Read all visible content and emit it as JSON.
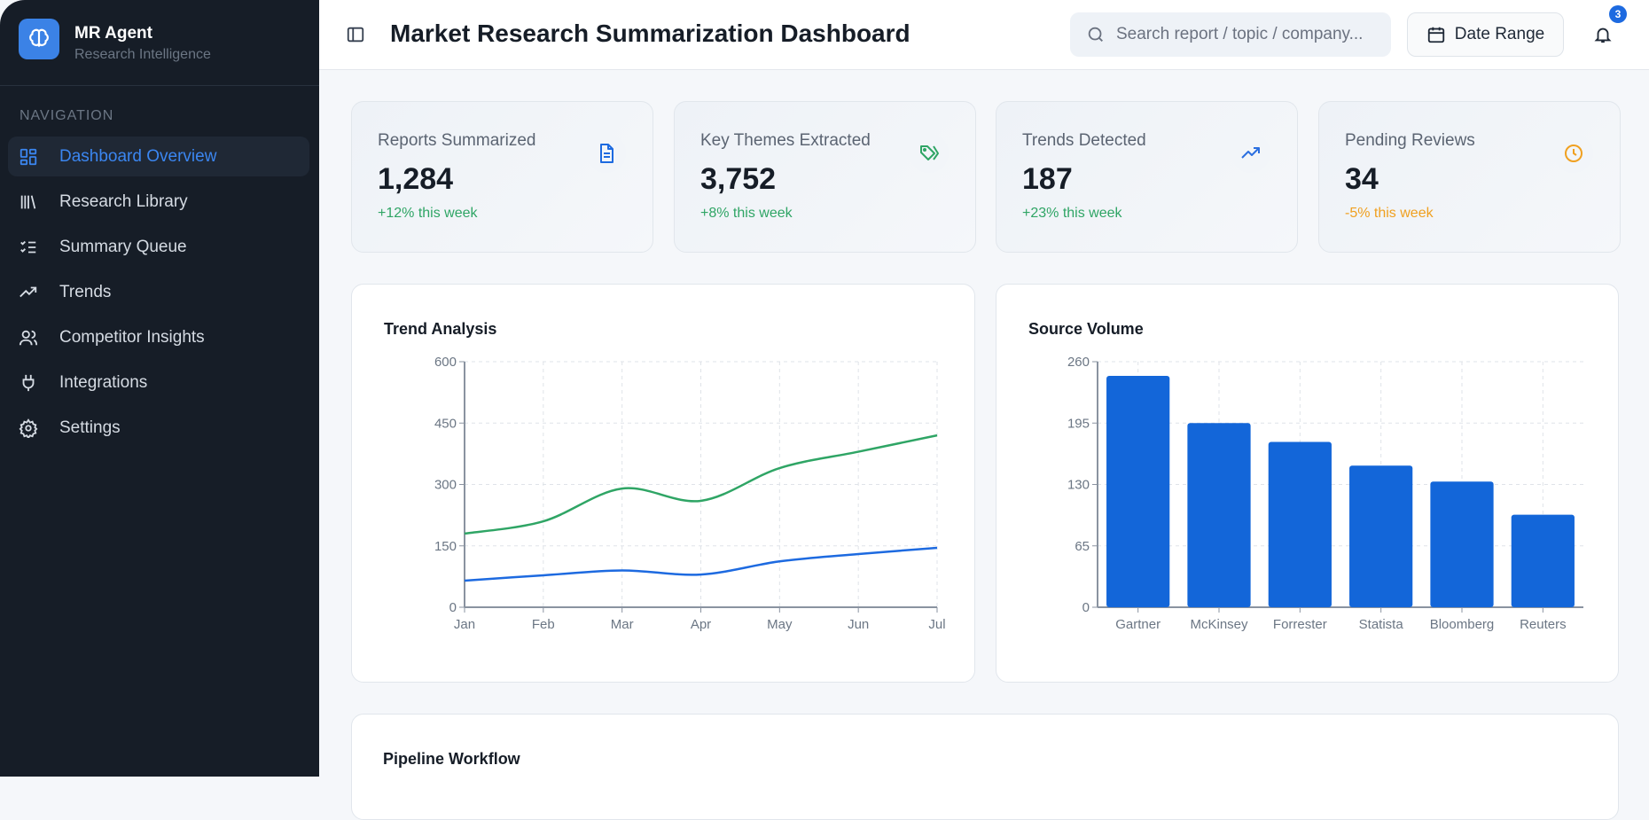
{
  "sidebar": {
    "brand": "MR Agent",
    "subtitle": "Research Intelligence",
    "nav_label": "NAVIGATION",
    "items": [
      {
        "label": "Dashboard Overview",
        "icon": "dashboard-icon",
        "active": true
      },
      {
        "label": "Research Library",
        "icon": "library-icon"
      },
      {
        "label": "Summary Queue",
        "icon": "checklist-icon"
      },
      {
        "label": "Trends",
        "icon": "trending-up-icon"
      },
      {
        "label": "Competitor Insights",
        "icon": "users-icon"
      },
      {
        "label": "Integrations",
        "icon": "plug-icon"
      },
      {
        "label": "Settings",
        "icon": "gear-icon"
      }
    ]
  },
  "header": {
    "title": "Market Research Summarization Dashboard",
    "search_placeholder": "Search report / topic / company...",
    "date_range": "Date Range",
    "notifications": "3"
  },
  "stats": [
    {
      "label": "Reports Summarized",
      "value": "1,284",
      "change": "+12% this week",
      "color": "#2fa565",
      "icon": "document-icon",
      "icon_color": "#1d6ae0"
    },
    {
      "label": "Key Themes Extracted",
      "value": "3,752",
      "change": "+8% this week",
      "color": "#2fa565",
      "icon": "tags-icon",
      "icon_color": "#2fa565"
    },
    {
      "label": "Trends Detected",
      "value": "187",
      "change": "+23% this week",
      "color": "#2fa565",
      "icon": "trending-up-icon",
      "icon_color": "#2b6fe0"
    },
    {
      "label": "Pending Reviews",
      "value": "34",
      "change": "-5% this week",
      "color": "#f0a020",
      "icon": "clock-icon",
      "icon_color": "#f0a020"
    }
  ],
  "chart_data": [
    {
      "type": "line",
      "title": "Trend Analysis",
      "categories": [
        "Jan",
        "Feb",
        "Mar",
        "Apr",
        "May",
        "Jun",
        "Jul"
      ],
      "ylim": [
        0,
        600
      ],
      "yticks": [
        0,
        150,
        300,
        450,
        600
      ],
      "grid": true,
      "series": [
        {
          "values": [
            180,
            210,
            290,
            260,
            340,
            380,
            420
          ],
          "color": "#2fa565"
        },
        {
          "values": [
            65,
            78,
            90,
            80,
            112,
            130,
            145
          ],
          "color": "#1d6ae0"
        }
      ]
    },
    {
      "type": "bar",
      "title": "Source Volume",
      "categories": [
        "Gartner",
        "McKinsey",
        "Forrester",
        "Statista",
        "Bloomberg",
        "Reuters"
      ],
      "values": [
        245,
        195,
        175,
        150,
        133,
        98
      ],
      "ylim": [
        0,
        260
      ],
      "yticks": [
        0,
        65,
        130,
        195,
        260
      ],
      "grid": true,
      "color": "#1366d9"
    }
  ],
  "pipeline": {
    "title": "Pipeline Workflow"
  }
}
